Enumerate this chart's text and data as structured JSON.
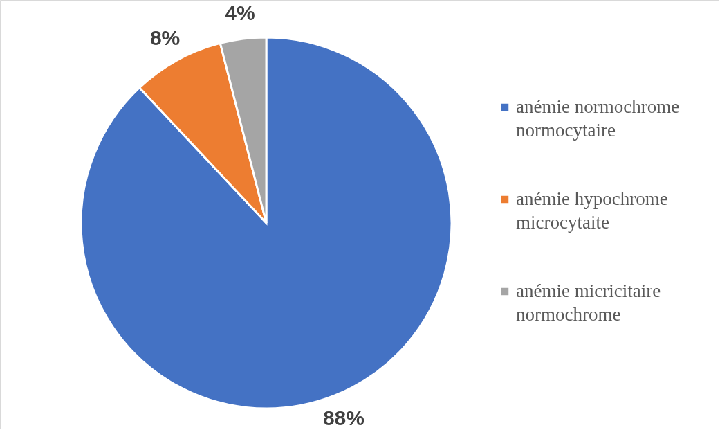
{
  "chart_data": {
    "type": "pie",
    "categories": [
      "anémie normochrome normocytaire",
      "anémie hypochrome microcytaite",
      "anémie micricitaire normochrome"
    ],
    "values": [
      88,
      8,
      4
    ],
    "colors": [
      "#4472c4",
      "#ed7d31",
      "#a5a5a5"
    ],
    "value_labels": [
      "88%",
      "8%",
      "4%"
    ],
    "legend": "right"
  }
}
